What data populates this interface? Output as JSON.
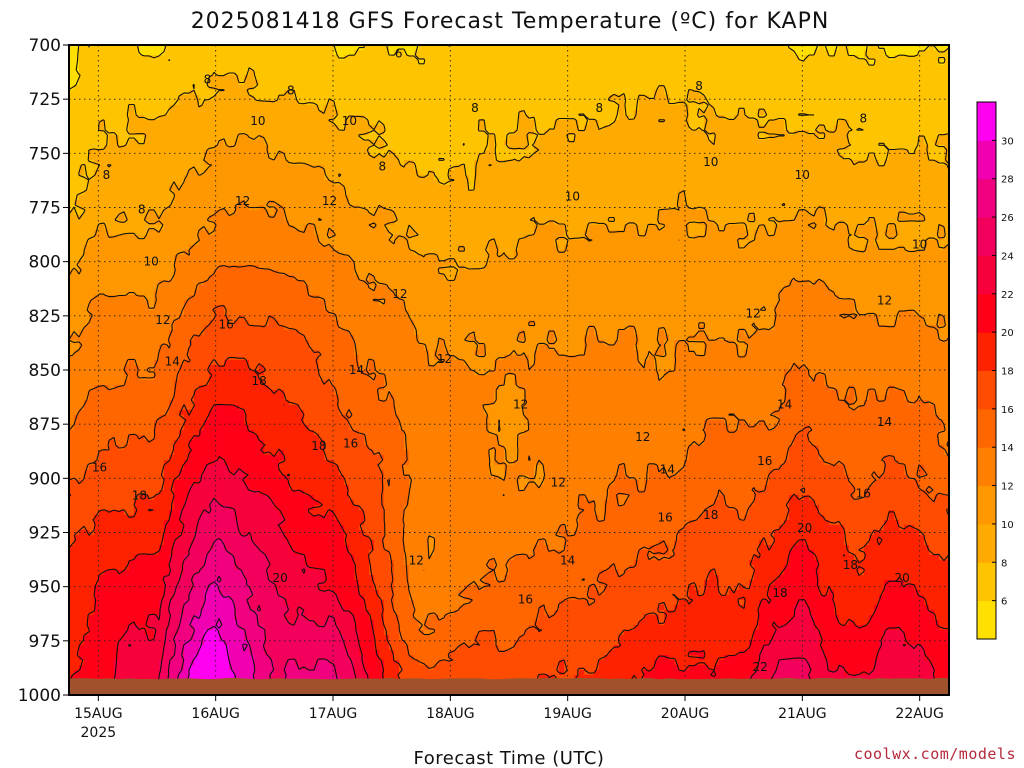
{
  "title": "2025081418 GFS Forecast Temperature (ºC) for KAPN",
  "credit": "coolwx.com/models",
  "chart_data": {
    "type": "heatmap",
    "title": "2025081418 GFS Forecast Temperature (ºC) for KAPN",
    "xlabel": "Forecast Time (UTC)",
    "ylabel": "",
    "x_ticks": [
      {
        "label": "15AUG",
        "sub": "2025",
        "day": 15
      },
      {
        "label": "16AUG",
        "sub": "",
        "day": 16
      },
      {
        "label": "17AUG",
        "sub": "",
        "day": 17
      },
      {
        "label": "18AUG",
        "sub": "",
        "day": 18
      },
      {
        "label": "19AUG",
        "sub": "",
        "day": 19
      },
      {
        "label": "20AUG",
        "sub": "",
        "day": 20
      },
      {
        "label": "21AUG",
        "sub": "",
        "day": 21
      },
      {
        "label": "22AUG",
        "sub": "",
        "day": 22
      }
    ],
    "xlim_day": [
      14.75,
      22.25
    ],
    "y_ticks": [
      "700",
      "725",
      "750",
      "775",
      "800",
      "825",
      "850",
      "875",
      "900",
      "925",
      "950",
      "975",
      "1000"
    ],
    "ylim_hpa": [
      700,
      1000
    ],
    "y_reversed": true,
    "grid": true,
    "contour_levels": [
      6,
      8,
      10,
      12,
      14,
      16,
      18,
      20,
      22,
      24,
      26,
      28,
      30
    ],
    "colorbar": {
      "ticks": [
        "6",
        "8",
        "10",
        "12",
        "14",
        "16",
        "18",
        "20",
        "22",
        "24",
        "26",
        "28",
        "30"
      ],
      "colors": [
        "#ffe000",
        "#ffc400",
        "#ffaa00",
        "#ff9800",
        "#ff7f00",
        "#ff6600",
        "#ff4c00",
        "#ff2200",
        "#ff0018",
        "#f8003c",
        "#f2005c",
        "#f10080",
        "#f000b0",
        "#ff00f0"
      ]
    },
    "ground_color": "#a0522d",
    "profile_levels_hpa": [
      700,
      725,
      750,
      775,
      800,
      825,
      850,
      875,
      900,
      925,
      950,
      975,
      995
    ],
    "profiles": [
      {
        "day": 14.75,
        "t": [
          5,
          6.5,
          7,
          7.5,
          9.5,
          11,
          12.5,
          14,
          15.5,
          17.5,
          19,
          19,
          20
        ]
      },
      {
        "day": 15.0,
        "t": [
          7,
          7.5,
          8,
          9,
          11,
          12.5,
          13.5,
          15,
          16.5,
          18.5,
          20,
          21,
          21.5
        ]
      },
      {
        "day": 15.25,
        "t": [
          6.5,
          7.5,
          8.5,
          9.5,
          11,
          12.5,
          14,
          15.5,
          17,
          19,
          20.5,
          22,
          23
        ]
      },
      {
        "day": 15.5,
        "t": [
          5.5,
          7.5,
          8.5,
          9.5,
          11,
          12.5,
          14,
          16,
          17.5,
          19,
          21,
          22.5,
          23.5
        ]
      },
      {
        "day": 15.75,
        "t": [
          6.5,
          8,
          9.5,
          11,
          12.5,
          14.5,
          16.5,
          18.5,
          21,
          23,
          25.5,
          28,
          30
        ]
      },
      {
        "day": 16.0,
        "t": [
          7,
          8.5,
          10,
          11.5,
          13.5,
          16,
          18.5,
          20.5,
          23,
          26,
          28.5,
          31,
          33
        ]
      },
      {
        "day": 16.25,
        "t": [
          7,
          8.5,
          10.5,
          12,
          14,
          16,
          18.5,
          20,
          22,
          24,
          26,
          28,
          29
        ]
      },
      {
        "day": 16.5,
        "t": [
          6.5,
          8,
          10,
          12,
          13.5,
          15.5,
          17.5,
          19,
          21,
          22.5,
          24,
          25,
          26
        ]
      },
      {
        "day": 16.75,
        "t": [
          6.5,
          8,
          9.5,
          11.5,
          13.5,
          15,
          17,
          18,
          19.5,
          21,
          22.5,
          25,
          27
        ]
      },
      {
        "day": 17.0,
        "t": [
          6,
          7.5,
          9,
          11,
          12.5,
          14,
          15.5,
          17,
          18.5,
          20.5,
          22,
          25,
          27
        ]
      },
      {
        "day": 17.25,
        "t": [
          6,
          7.5,
          8.5,
          10,
          11.5,
          13,
          14,
          15.5,
          17,
          18.5,
          20,
          21.5,
          23
        ]
      },
      {
        "day": 17.5,
        "t": [
          6,
          7,
          8,
          9.5,
          11,
          12.5,
          13.5,
          14.5,
          15.5,
          15,
          16,
          17.5,
          19
        ]
      },
      {
        "day": 17.75,
        "t": [
          6,
          7,
          7.5,
          9,
          10,
          11.5,
          12.5,
          13,
          13,
          12,
          12.5,
          14.5,
          17
        ]
      },
      {
        "day": 18.0,
        "t": [
          6,
          7,
          7.5,
          8.5,
          10,
          11,
          12.5,
          13,
          13,
          12.5,
          13,
          15,
          17.5
        ]
      },
      {
        "day": 18.25,
        "t": [
          6.5,
          7.5,
          8,
          8.5,
          10,
          11.5,
          12,
          12.5,
          12.5,
          13,
          14,
          16,
          17.5
        ]
      },
      {
        "day": 18.5,
        "t": [
          6.5,
          7.5,
          8,
          9,
          10.5,
          11.5,
          12,
          11.5,
          12,
          13,
          14.5,
          16,
          17.5
        ]
      },
      {
        "day": 18.75,
        "t": [
          6.5,
          7.5,
          8.5,
          9.5,
          10.5,
          11.5,
          12.5,
          12.5,
          12,
          13.5,
          15,
          16.5,
          18
        ]
      },
      {
        "day": 19.0,
        "t": [
          6.5,
          7.5,
          8.5,
          9.5,
          10.5,
          11.5,
          12.5,
          13,
          13.5,
          14,
          15.5,
          17,
          18.5
        ]
      },
      {
        "day": 19.25,
        "t": [
          6.5,
          7.5,
          8.5,
          9.5,
          11,
          11.5,
          12.5,
          13,
          13.5,
          14.5,
          16,
          17,
          18.5
        ]
      },
      {
        "day": 19.5,
        "t": [
          6.5,
          8,
          8.5,
          9.5,
          11,
          11.5,
          12.5,
          13,
          14,
          15,
          16.5,
          18,
          19.5
        ]
      },
      {
        "day": 19.75,
        "t": [
          6.5,
          8,
          9,
          9.5,
          10.5,
          11.5,
          12,
          13,
          14,
          15.5,
          17,
          19,
          21.5
        ]
      },
      {
        "day": 20.0,
        "t": [
          6.5,
          8,
          9,
          10,
          10.5,
          11.5,
          12.5,
          13.5,
          14.5,
          16,
          17.5,
          19,
          21
        ]
      },
      {
        "day": 20.25,
        "t": [
          6.5,
          7.5,
          8.5,
          9.5,
          10.5,
          11.5,
          12.5,
          14,
          15.5,
          17,
          18.5,
          19.5,
          20.5
        ]
      },
      {
        "day": 20.5,
        "t": [
          6.5,
          7.5,
          8.5,
          9.5,
          10.5,
          11.5,
          12.5,
          14,
          15,
          16.5,
          17.5,
          19,
          21.5
        ]
      },
      {
        "day": 20.75,
        "t": [
          6.5,
          7.5,
          8.5,
          9.5,
          11,
          12,
          13,
          14,
          16,
          18,
          20,
          22.5,
          24.5
        ]
      },
      {
        "day": 21.0,
        "t": [
          6,
          7.5,
          8.5,
          10,
          11.5,
          13,
          14.5,
          16,
          17.5,
          19.5,
          21.5,
          23.5,
          25
        ]
      },
      {
        "day": 21.25,
        "t": [
          6,
          7.5,
          8.5,
          9.5,
          11,
          12.5,
          13.5,
          15,
          16.5,
          18.5,
          19.5,
          21,
          22.5
        ]
      },
      {
        "day": 21.5,
        "t": [
          6,
          7,
          8,
          9.5,
          10.5,
          12,
          13.5,
          14.5,
          15.5,
          17,
          18.5,
          20.5,
          22
        ]
      },
      {
        "day": 21.75,
        "t": [
          6,
          7,
          8,
          9.5,
          10.5,
          12,
          13.5,
          15,
          16.5,
          18.5,
          20.5,
          22.5,
          24
        ]
      },
      {
        "day": 22.0,
        "t": [
          6,
          7,
          8,
          9.5,
          10.5,
          12,
          13.5,
          14.5,
          16,
          18,
          19.5,
          21.5,
          23
        ]
      },
      {
        "day": 22.25,
        "t": [
          6,
          7,
          8,
          9,
          10.5,
          11.5,
          12.5,
          13.5,
          15,
          17,
          18.5,
          20,
          21
        ]
      }
    ],
    "contour_labels": [
      {
        "text": "6",
        "day": 17.56,
        "hpa": 704
      },
      {
        "text": "8",
        "day": 15.07,
        "hpa": 760
      },
      {
        "text": "8",
        "day": 15.37,
        "hpa": 776
      },
      {
        "text": "8",
        "day": 15.93,
        "hpa": 716
      },
      {
        "text": "8",
        "day": 16.64,
        "hpa": 721
      },
      {
        "text": "8",
        "day": 17.42,
        "hpa": 756
      },
      {
        "text": "8",
        "day": 18.21,
        "hpa": 729
      },
      {
        "text": "8",
        "day": 19.27,
        "hpa": 729
      },
      {
        "text": "8",
        "day": 20.12,
        "hpa": 719
      },
      {
        "text": "8",
        "day": 21.52,
        "hpa": 734
      },
      {
        "text": "10",
        "day": 16.36,
        "hpa": 735
      },
      {
        "text": "10",
        "day": 17.14,
        "hpa": 735
      },
      {
        "text": "10",
        "day": 15.45,
        "hpa": 800
      },
      {
        "text": "10",
        "day": 19.04,
        "hpa": 770
      },
      {
        "text": "10",
        "day": 20.22,
        "hpa": 754
      },
      {
        "text": "10",
        "day": 21.0,
        "hpa": 760
      },
      {
        "text": "10",
        "day": 22.0,
        "hpa": 792
      },
      {
        "text": "12",
        "day": 15.55,
        "hpa": 827
      },
      {
        "text": "12",
        "day": 16.23,
        "hpa": 772
      },
      {
        "text": "12",
        "day": 16.97,
        "hpa": 772
      },
      {
        "text": "12",
        "day": 17.57,
        "hpa": 815
      },
      {
        "text": "12",
        "day": 17.95,
        "hpa": 845
      },
      {
        "text": "12",
        "day": 18.6,
        "hpa": 866
      },
      {
        "text": "12",
        "day": 18.92,
        "hpa": 902
      },
      {
        "text": "12",
        "day": 17.71,
        "hpa": 938
      },
      {
        "text": "12",
        "day": 19.64,
        "hpa": 881
      },
      {
        "text": "12",
        "day": 20.58,
        "hpa": 824
      },
      {
        "text": "12",
        "day": 21.7,
        "hpa": 818
      },
      {
        "text": "14",
        "day": 15.63,
        "hpa": 846
      },
      {
        "text": "14",
        "day": 17.2,
        "hpa": 850
      },
      {
        "text": "14",
        "day": 19.0,
        "hpa": 938
      },
      {
        "text": "14",
        "day": 19.85,
        "hpa": 896
      },
      {
        "text": "14",
        "day": 20.85,
        "hpa": 866
      },
      {
        "text": "14",
        "day": 21.7,
        "hpa": 874
      },
      {
        "text": "16",
        "day": 15.01,
        "hpa": 895
      },
      {
        "text": "16",
        "day": 16.09,
        "hpa": 829
      },
      {
        "text": "16",
        "day": 17.15,
        "hpa": 884
      },
      {
        "text": "16",
        "day": 18.64,
        "hpa": 956
      },
      {
        "text": "16",
        "day": 19.83,
        "hpa": 918
      },
      {
        "text": "16",
        "day": 20.68,
        "hpa": 892
      },
      {
        "text": "16",
        "day": 21.52,
        "hpa": 907
      },
      {
        "text": "18",
        "day": 15.35,
        "hpa": 908
      },
      {
        "text": "18",
        "day": 16.37,
        "hpa": 855
      },
      {
        "text": "18",
        "day": 16.88,
        "hpa": 885
      },
      {
        "text": "18",
        "day": 20.22,
        "hpa": 917
      },
      {
        "text": "18",
        "day": 21.41,
        "hpa": 940
      },
      {
        "text": "18",
        "day": 20.81,
        "hpa": 953
      },
      {
        "text": "20",
        "day": 16.55,
        "hpa": 946
      },
      {
        "text": "20",
        "day": 21.02,
        "hpa": 923
      },
      {
        "text": "20",
        "day": 21.85,
        "hpa": 946
      },
      {
        "text": "22",
        "day": 20.64,
        "hpa": 987
      }
    ]
  }
}
